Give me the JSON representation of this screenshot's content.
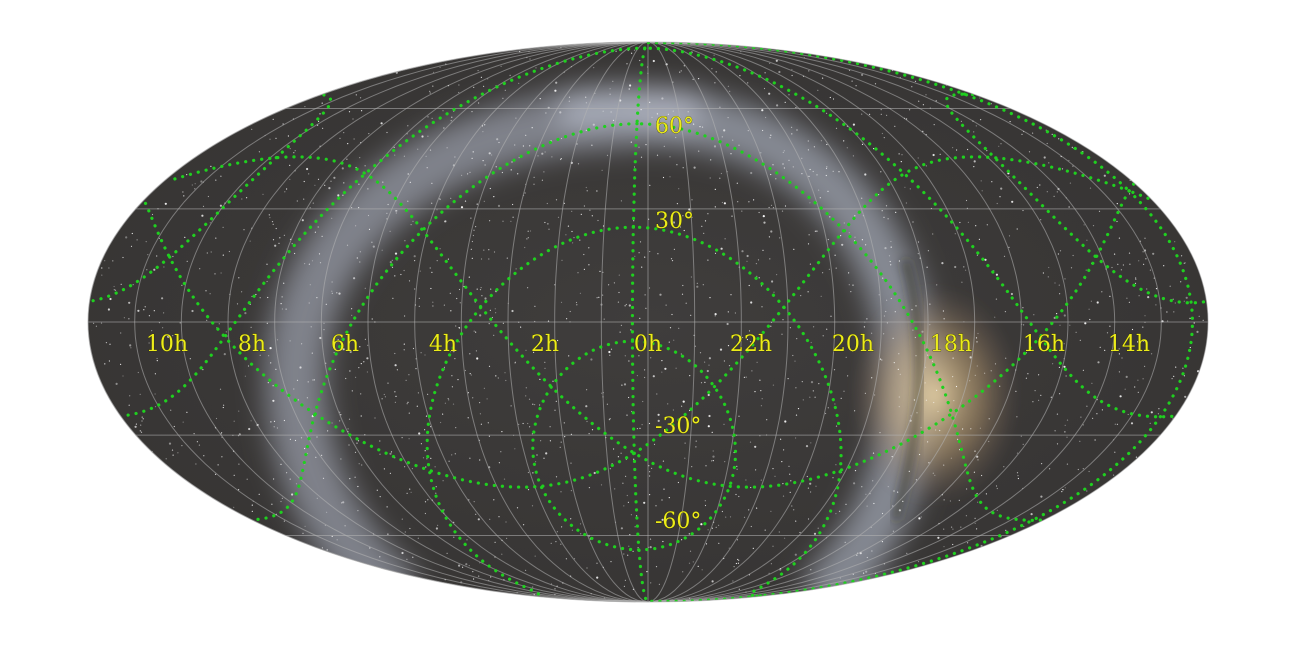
{
  "map": {
    "projection": "mollweide",
    "background_color": "#ffffff",
    "sky_color": "#3d3b3a",
    "milky_way_color": "#c9d2e6",
    "galactic_center_color": "#e6cd96",
    "grid_color": "#b4b4b4",
    "label_color": "#ecec1a",
    "dotted_curve_color": "#1fd01f",
    "ra_labels": [
      "10h",
      "8h",
      "6h",
      "4h",
      "2h",
      "0h",
      "22h",
      "20h",
      "18h",
      "16h",
      "14h"
    ],
    "dec_labels": [
      "60°",
      "30°",
      "-30°",
      "-60°"
    ]
  }
}
